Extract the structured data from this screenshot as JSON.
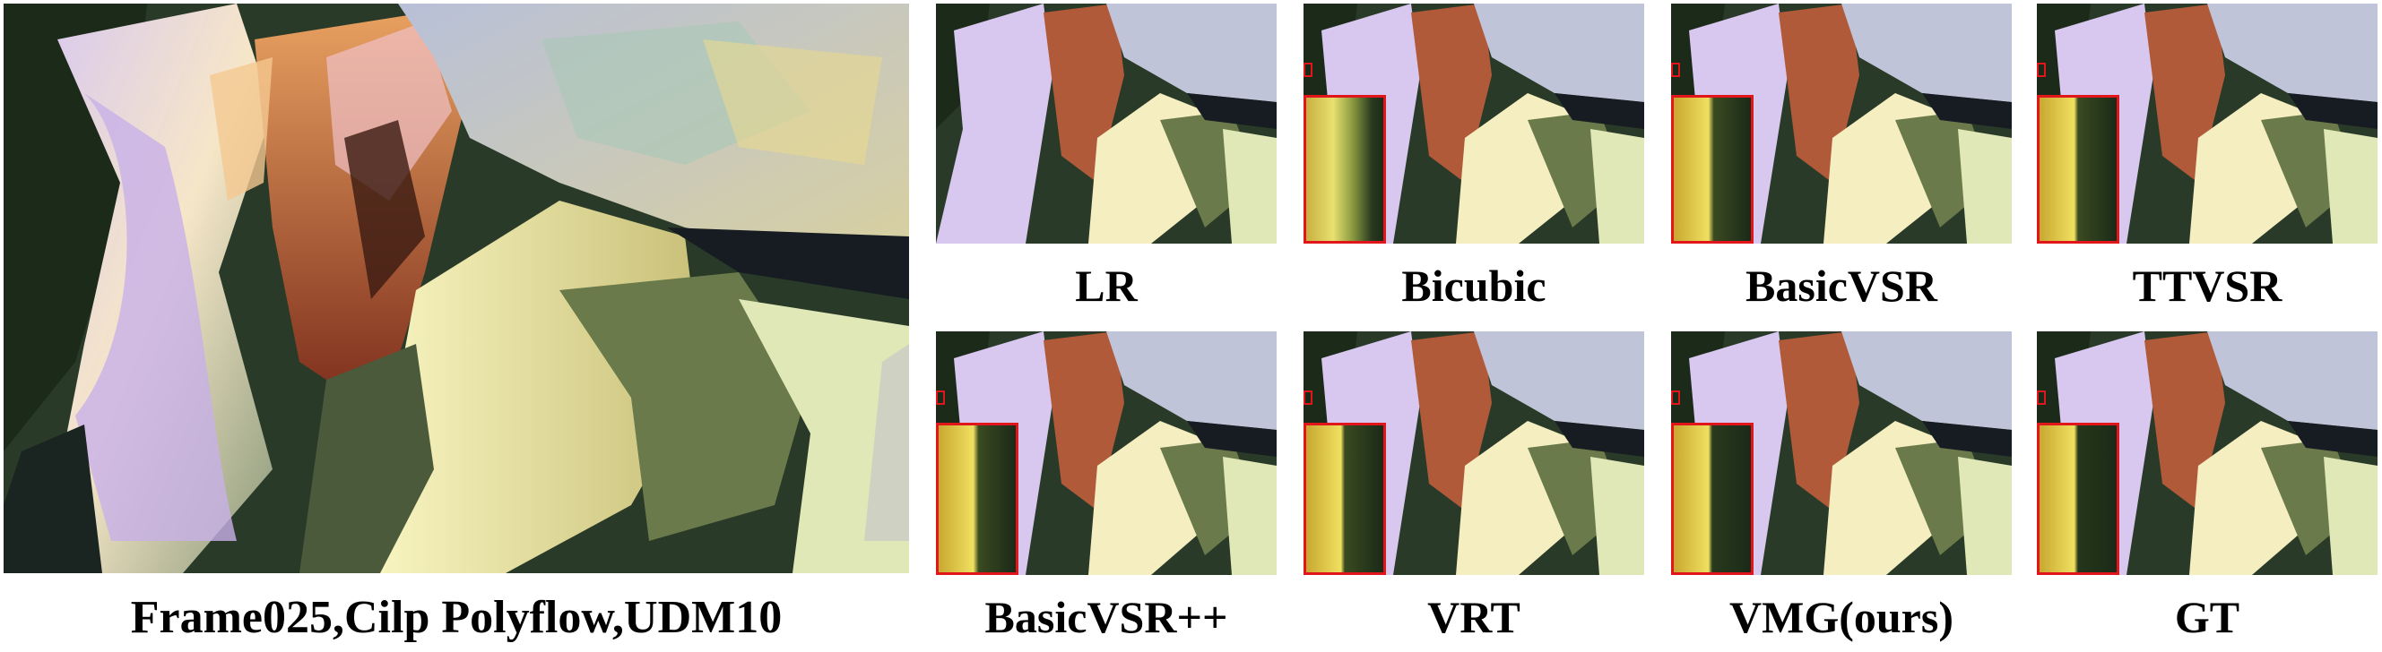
{
  "figure": {
    "main_caption": "Frame025,Cilp Polyflow,UDM10",
    "panels": [
      {
        "label": "LR",
        "inset": false
      },
      {
        "label": "Bicubic",
        "inset": true,
        "inset_style": "blurry"
      },
      {
        "label": "BasicVSR",
        "inset": true,
        "inset_style": "sharp"
      },
      {
        "label": "TTVSR",
        "inset": true,
        "inset_style": "sharp"
      },
      {
        "label": "BasicVSR++",
        "inset": true,
        "inset_style": "sharp"
      },
      {
        "label": "VRT",
        "inset": true,
        "inset_style": "sharp"
      },
      {
        "label": "VMG(ours)",
        "inset": true,
        "inset_style": "sharp"
      },
      {
        "label": "GT",
        "inset": true,
        "inset_style": "sharp"
      }
    ]
  },
  "colors": {
    "inset_border": "#e0161b",
    "caption_text": "#000000"
  }
}
